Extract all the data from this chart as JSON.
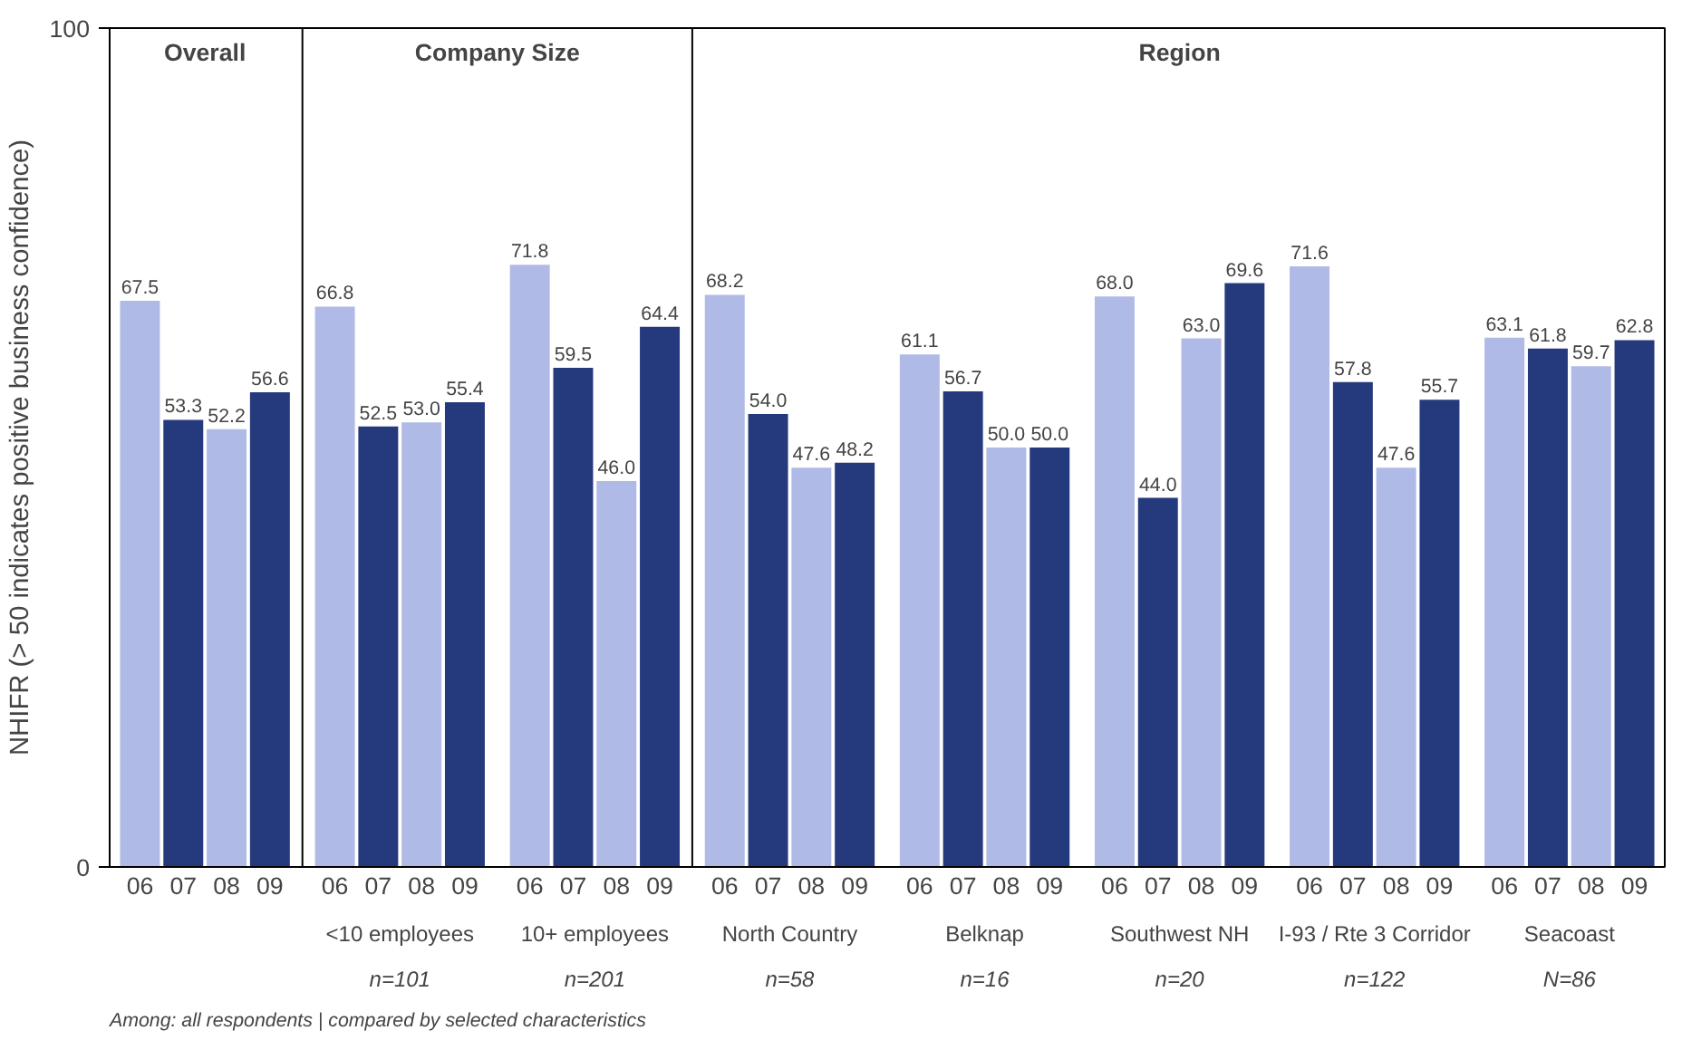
{
  "chart_data": {
    "type": "bar",
    "ylabel": "NHIFR (> 50 indicates positive business confidence)",
    "categories": [
      "06",
      "07",
      "08",
      "09",
      "06",
      "07",
      "08",
      "09",
      "06",
      "07",
      "08",
      "09",
      "06",
      "07",
      "08",
      "09",
      "06",
      "07",
      "08",
      "09",
      "06",
      "07",
      "08",
      "09",
      "06",
      "07",
      "08",
      "09",
      "06",
      "07",
      "08",
      "09"
    ],
    "values": [
      67.5,
      53.3,
      52.2,
      56.6,
      66.8,
      52.5,
      53.0,
      55.4,
      71.8,
      59.5,
      46.0,
      64.4,
      68.2,
      54.0,
      47.6,
      48.2,
      61.1,
      56.7,
      50.0,
      50.0,
      68.0,
      44.0,
      63.0,
      69.6,
      71.6,
      57.8,
      47.6,
      55.7,
      63.1,
      61.8,
      59.7,
      62.8
    ],
    "colors": [
      "#b0bae6",
      "#253a7c",
      "#b0bae6",
      "#253a7c",
      "#b0bae6",
      "#253a7c",
      "#b0bae6",
      "#253a7c",
      "#b0bae6",
      "#253a7c",
      "#b0bae6",
      "#253a7c",
      "#b0bae6",
      "#253a7c",
      "#b0bae6",
      "#253a7c",
      "#b0bae6",
      "#253a7c",
      "#b0bae6",
      "#253a7c",
      "#b0bae6",
      "#253a7c",
      "#b0bae6",
      "#253a7c",
      "#b0bae6",
      "#253a7c",
      "#b0bae6",
      "#253a7c",
      "#b0bae6",
      "#253a7c",
      "#b0bae6",
      "#253a7c"
    ],
    "value_labels": [
      "67.5",
      "53.3",
      "52.2",
      "56.6",
      "66.8",
      "52.5",
      "53.0",
      "55.4",
      "71.8",
      "59.5",
      "46.0",
      "64.4",
      "68.2",
      "54.0",
      "47.6",
      "48.2",
      "61.1",
      "56.7",
      "50.0",
      "50.0",
      "68.0",
      "44.0",
      "63.0",
      "69.6",
      "71.6",
      "57.8",
      "47.6",
      "55.7",
      "63.1",
      "61.8",
      "59.7",
      "62.8"
    ],
    "ylim": [
      0,
      100
    ],
    "yticks": [
      0,
      100
    ],
    "grid": false,
    "annotations": [
      "Overall",
      "Company Size",
      "Region",
      "<10 employees",
      "n=101",
      "10+ employees",
      "n=201",
      "North Country",
      "n=58",
      "Belknap",
      "n=16",
      "Southwest NH",
      "n=20",
      "I-93 / Rte 3 Corridor",
      "n=122",
      "Seacoast",
      "N=86",
      "Among: all respondents | compared by selected characteristics"
    ]
  }
}
